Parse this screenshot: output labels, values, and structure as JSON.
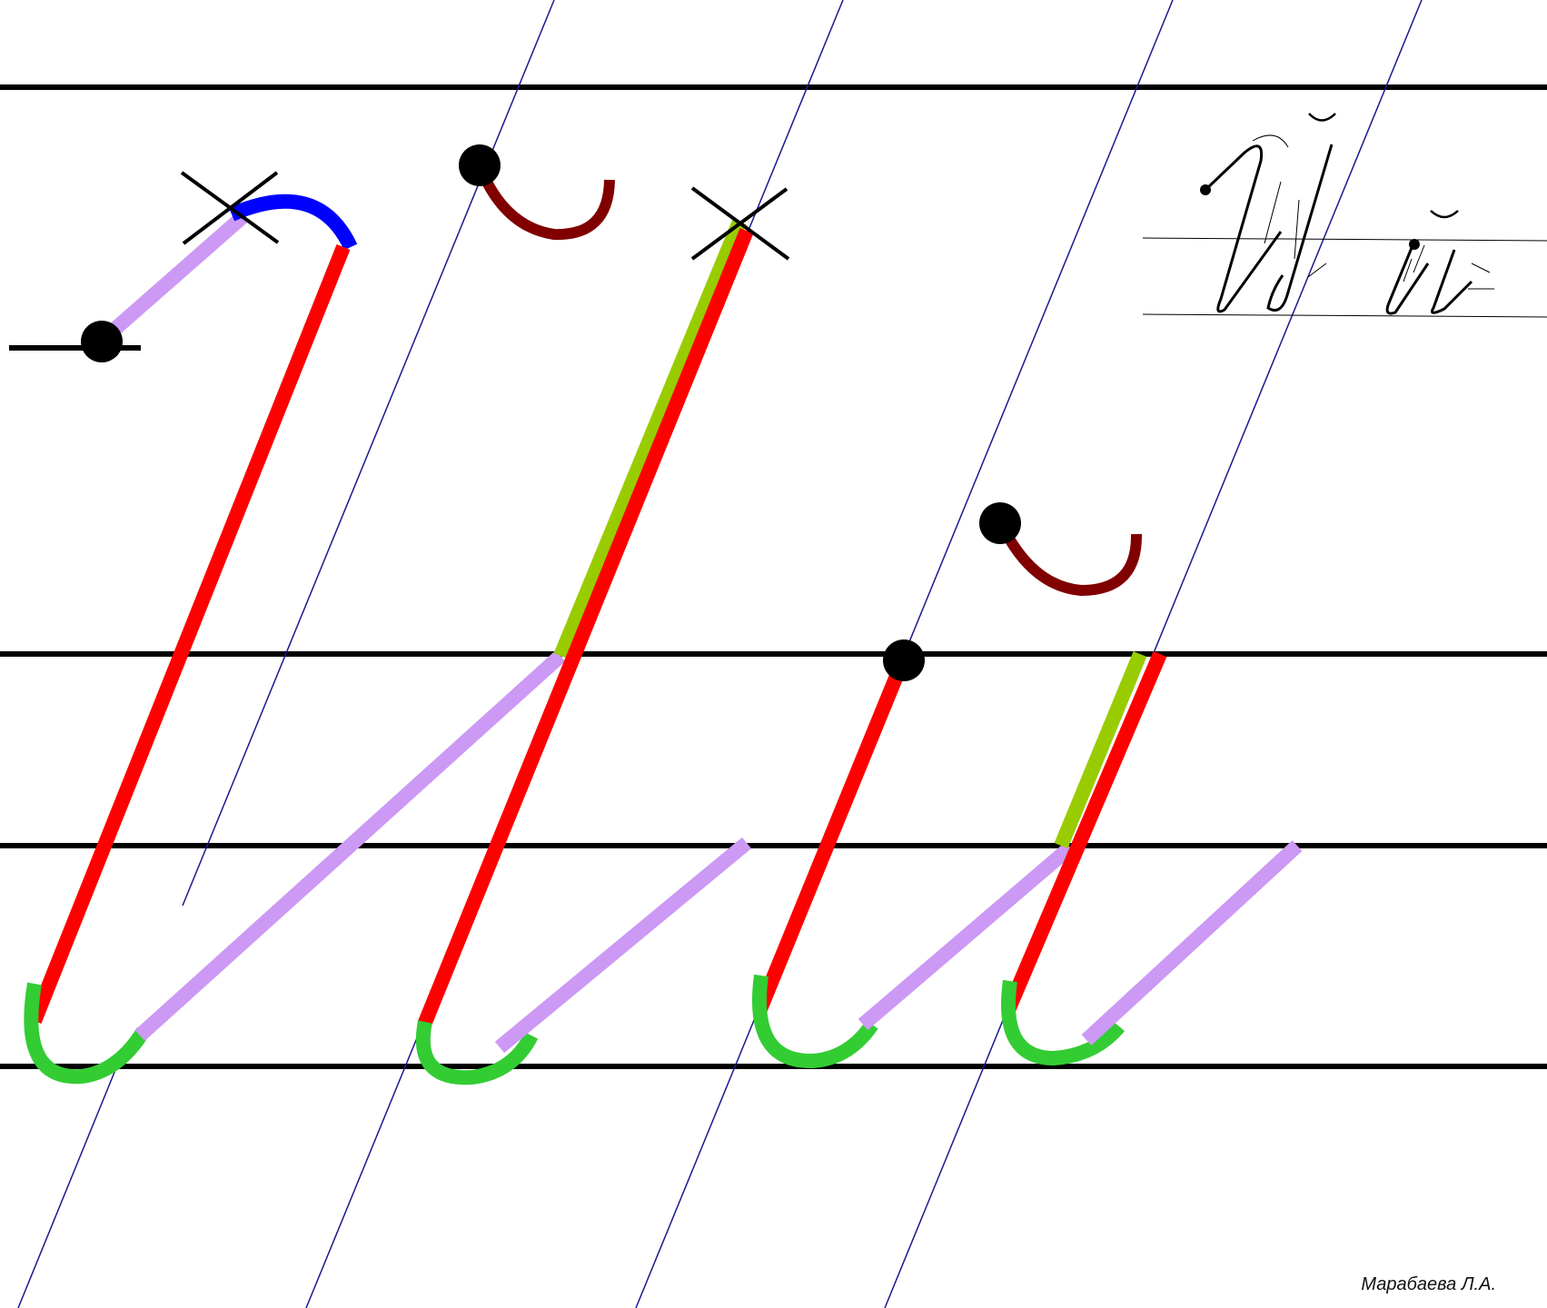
{
  "author": "Марабаева Л.А.",
  "sample": {
    "letters": [
      "Й",
      "й"
    ]
  },
  "colors": {
    "ruling": "#000000",
    "slant_guide": "#1a1a8c",
    "main_stroke": "#ff0000",
    "connecting_stroke": "#cc99f5",
    "loop": "#33cc33",
    "top_arc": "#0000ff",
    "repeat_stroke": "#99cc00",
    "breve": "#800000",
    "start_point": "#000000"
  }
}
